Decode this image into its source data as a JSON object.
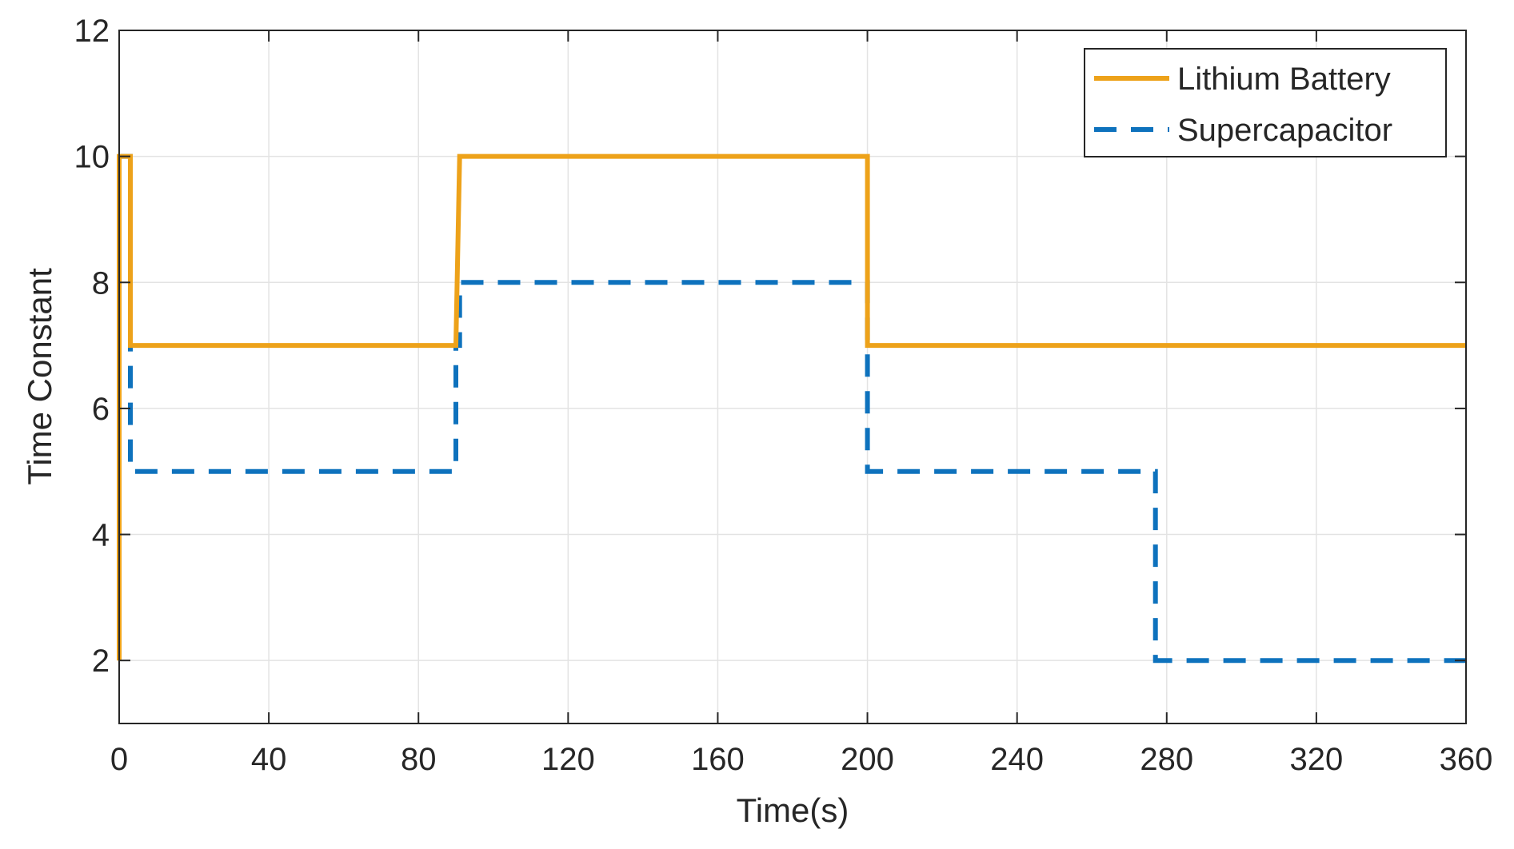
{
  "chart_data": {
    "type": "line",
    "title": "",
    "xlabel": "Time(s)",
    "ylabel": "Time Constant",
    "xlim": [
      0,
      360
    ],
    "ylim": [
      1,
      12
    ],
    "xticks": [
      0,
      40,
      80,
      120,
      160,
      200,
      240,
      280,
      320,
      360
    ],
    "yticks": [
      2,
      4,
      6,
      8,
      10,
      12
    ],
    "grid": true,
    "legend_position": "top-right",
    "series": [
      {
        "name": "Lithium Battery",
        "color": "#EDA21A",
        "style": "solid",
        "x": [
          0,
          0,
          0.5,
          3,
          3,
          90,
          91,
          200,
          200,
          360
        ],
        "y": [
          2,
          10,
          10,
          10,
          7,
          7,
          10,
          10,
          7,
          7
        ]
      },
      {
        "name": "Supercapacitor",
        "color": "#0E72BD",
        "style": "dashed",
        "x": [
          0,
          3,
          3,
          90,
          90,
          91,
          91,
          200,
          200,
          277,
          277,
          360
        ],
        "y": [
          10,
          10,
          5,
          5,
          7,
          7,
          8,
          8,
          5,
          5,
          2,
          2
        ]
      }
    ]
  }
}
